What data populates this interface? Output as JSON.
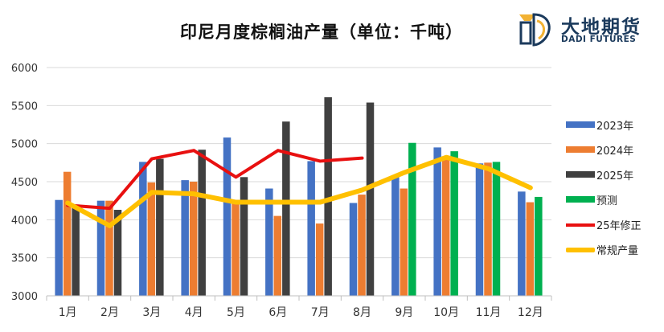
{
  "brand": {
    "name_cn": "大地期货",
    "name_en": "DADI FUTURES"
  },
  "chart_data": {
    "type": "bar",
    "title": "印尼月度棕榈油产量（单位：千吨）",
    "categories": [
      "1月",
      "2月",
      "3月",
      "4月",
      "5月",
      "6月",
      "7月",
      "8月",
      "9月",
      "10月",
      "11月",
      "12月"
    ],
    "ylim": [
      3000,
      6000
    ],
    "yticks": [
      "3000",
      "3500",
      "4000",
      "4500",
      "5000",
      "5500",
      "6000"
    ],
    "grid": true,
    "legend_position": "right",
    "bar_series": [
      {
        "name": "2023年",
        "color": "#4472c4",
        "values": [
          4260,
          4250,
          4760,
          4520,
          5080,
          4410,
          4770,
          4220,
          4560,
          4950,
          4740,
          4370
        ]
      },
      {
        "name": "2024年",
        "color": "#ed7d31",
        "values": [
          4630,
          4250,
          4490,
          4500,
          4210,
          4050,
          3950,
          4330,
          4410,
          4800,
          4750,
          4230
        ]
      },
      {
        "name": "2025年",
        "color": "#404040",
        "values": [
          4200,
          4130,
          4800,
          4920,
          4560,
          5290,
          5610,
          5540,
          null,
          null,
          null,
          null
        ]
      },
      {
        "name": "预测",
        "color": "#00b050",
        "values": [
          null,
          null,
          null,
          null,
          null,
          null,
          null,
          null,
          5010,
          4900,
          4760,
          4300
        ]
      }
    ],
    "line_series": [
      {
        "name": "25年修正",
        "color": "#e81010",
        "values": [
          4190,
          4150,
          4800,
          4910,
          4560,
          4910,
          4770,
          4810,
          null,
          null,
          null,
          null
        ]
      },
      {
        "name": "常规产量",
        "color": "#ffc000",
        "values": [
          4220,
          3920,
          4360,
          4340,
          4230,
          4230,
          4230,
          4390,
          4620,
          4820,
          4670,
          4420
        ]
      }
    ]
  }
}
